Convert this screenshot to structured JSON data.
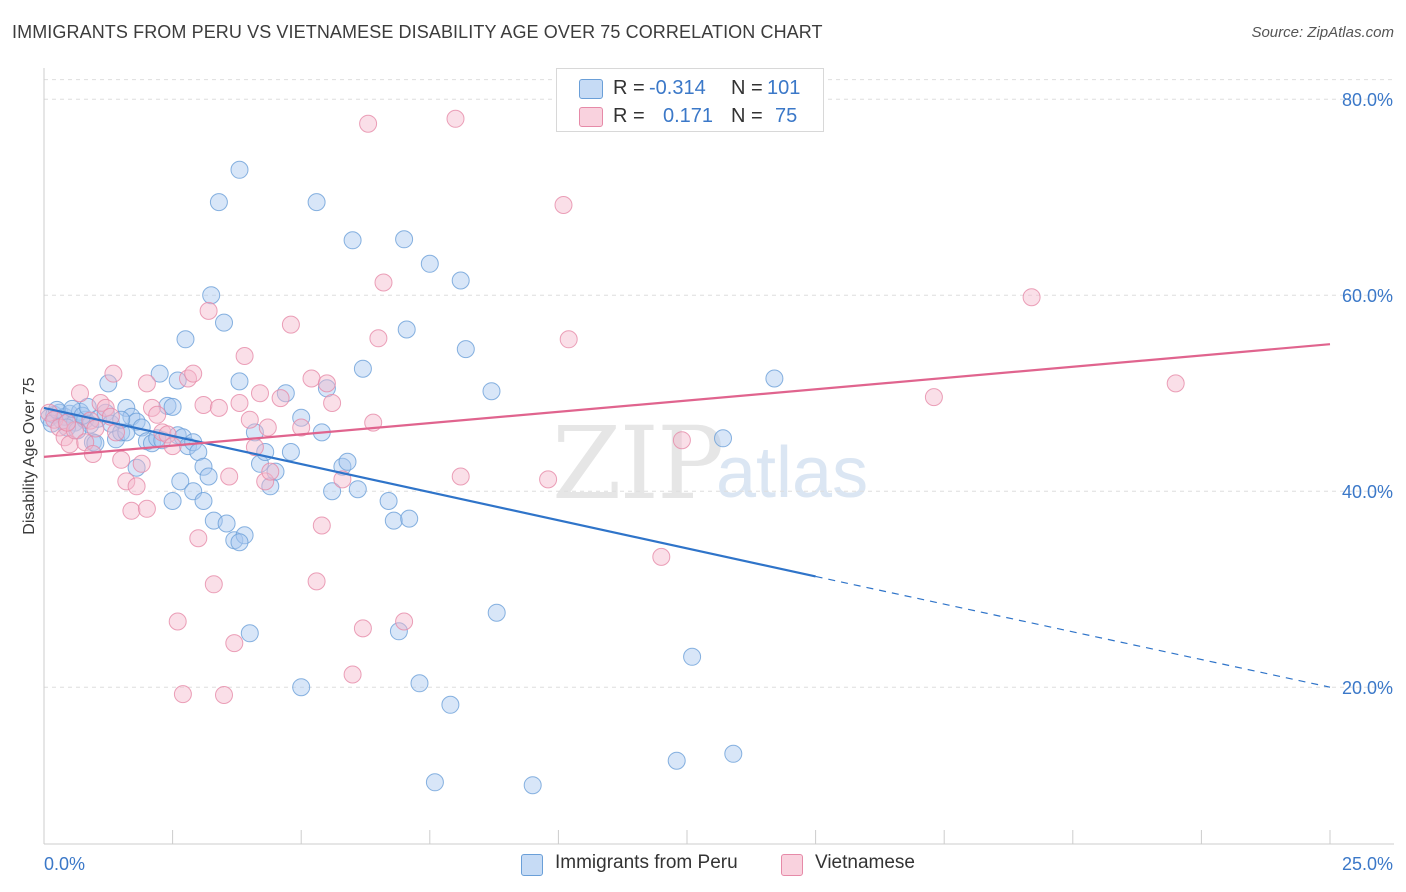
{
  "title": "IMMIGRANTS FROM PERU VS VIETNAMESE DISABILITY AGE OVER 75 CORRELATION CHART",
  "source": "Source: ZipAtlas.com",
  "watermark": {
    "zip": "ZIP",
    "atlas": "atlas"
  },
  "legend_stats": [
    {
      "r_label": "R =",
      "r_value": "-0.314",
      "n_label": "N =",
      "n_value": "101",
      "color": "#a9c8ef"
    },
    {
      "r_label": "R =",
      "r_value": "0.171",
      "n_label": "N =",
      "n_value": "75",
      "color": "#f5b8cc"
    }
  ],
  "chart_data": {
    "type": "scatter",
    "title": "IMMIGRANTS FROM PERU VS VIETNAMESE DISABILITY AGE OVER 75 CORRELATION CHART",
    "xlabel": "",
    "ylabel": "Disability Age Over 75",
    "xlim": [
      0,
      25
    ],
    "ylim": [
      4,
      84
    ],
    "x_ticks": [
      "0.0%",
      "25.0%"
    ],
    "y_ticks": [
      {
        "value": 80,
        "label": "80.0%"
      },
      {
        "value": 60,
        "label": "60.0%"
      },
      {
        "value": 40,
        "label": "40.0%"
      },
      {
        "value": 20,
        "label": "20.0%"
      }
    ],
    "grid": true,
    "legend_position": "bottom-center",
    "series": [
      {
        "name": "Immigrants from Peru",
        "color": "#a9c8ef",
        "stroke": "#6a9fd8",
        "trend_color": "#2f74c9",
        "trend": {
          "x0": 0,
          "y0": 48.5,
          "x1": 15,
          "y1": 31.3,
          "dash_to_x": 25,
          "dash_to_y": 20.0
        },
        "points": [
          [
            0.1,
            47.5
          ],
          [
            0.2,
            47.8
          ],
          [
            0.3,
            48.0
          ],
          [
            0.35,
            47.2
          ],
          [
            0.4,
            47.6
          ],
          [
            0.5,
            47.9
          ],
          [
            0.6,
            47.0
          ],
          [
            0.7,
            48.1
          ],
          [
            0.8,
            47.3
          ],
          [
            0.9,
            46.8
          ],
          [
            0.15,
            46.9
          ],
          [
            0.25,
            48.3
          ],
          [
            0.45,
            46.5
          ],
          [
            0.55,
            48.4
          ],
          [
            0.65,
            46.2
          ],
          [
            0.75,
            47.7
          ],
          [
            0.85,
            48.6
          ],
          [
            0.95,
            45.0
          ],
          [
            1.05,
            47.4
          ],
          [
            1.2,
            48.0
          ],
          [
            1.3,
            46.9
          ],
          [
            1.4,
            45.3
          ],
          [
            1.5,
            46.0
          ],
          [
            1.6,
            48.5
          ],
          [
            1.7,
            47.6
          ],
          [
            1.8,
            47.1
          ],
          [
            1.9,
            46.5
          ],
          [
            2.0,
            45.1
          ],
          [
            2.1,
            44.9
          ],
          [
            2.2,
            45.4
          ],
          [
            2.3,
            45.2
          ],
          [
            2.4,
            48.7
          ],
          [
            2.5,
            48.6
          ],
          [
            2.6,
            45.7
          ],
          [
            2.7,
            45.5
          ],
          [
            2.8,
            44.6
          ],
          [
            2.9,
            45.0
          ],
          [
            3.0,
            44.0
          ],
          [
            3.1,
            42.5
          ],
          [
            3.2,
            41.5
          ],
          [
            1.25,
            51.0
          ],
          [
            1.6,
            46.0
          ],
          [
            1.8,
            42.4
          ],
          [
            2.25,
            52.0
          ],
          [
            2.5,
            39.0
          ],
          [
            2.65,
            41.0
          ],
          [
            2.75,
            55.5
          ],
          [
            2.9,
            40.0
          ],
          [
            3.1,
            39.0
          ],
          [
            3.3,
            37.0
          ],
          [
            3.4,
            69.5
          ],
          [
            3.5,
            57.2
          ],
          [
            3.55,
            36.7
          ],
          [
            3.7,
            35.0
          ],
          [
            3.8,
            51.2
          ],
          [
            3.9,
            35.5
          ],
          [
            4.0,
            25.5
          ],
          [
            4.1,
            46.0
          ],
          [
            4.2,
            42.8
          ],
          [
            4.3,
            44.0
          ],
          [
            4.4,
            40.5
          ],
          [
            4.5,
            42.0
          ],
          [
            4.7,
            50.0
          ],
          [
            4.8,
            44.0
          ],
          [
            5.0,
            47.5
          ],
          [
            5.0,
            20.0
          ],
          [
            5.3,
            69.5
          ],
          [
            5.4,
            46.0
          ],
          [
            5.5,
            50.5
          ],
          [
            5.6,
            40.0
          ],
          [
            5.8,
            42.5
          ],
          [
            5.9,
            43.0
          ],
          [
            6.0,
            65.6
          ],
          [
            6.1,
            40.2
          ],
          [
            6.2,
            52.5
          ],
          [
            6.7,
            39.0
          ],
          [
            6.8,
            37.0
          ],
          [
            6.9,
            25.7
          ],
          [
            7.0,
            65.7
          ],
          [
            7.05,
            56.5
          ],
          [
            7.1,
            37.2
          ],
          [
            7.3,
            20.4
          ],
          [
            7.5,
            63.2
          ],
          [
            7.6,
            10.3
          ],
          [
            7.9,
            18.2
          ],
          [
            8.1,
            61.5
          ],
          [
            8.2,
            54.5
          ],
          [
            8.7,
            50.2
          ],
          [
            8.8,
            27.6
          ],
          [
            9.5,
            10.0
          ],
          [
            3.8,
            72.8
          ],
          [
            3.25,
            60.0
          ],
          [
            2.6,
            51.3
          ],
          [
            1.0,
            44.9
          ],
          [
            1.5,
            47.3
          ],
          [
            12.3,
            12.5
          ],
          [
            12.6,
            23.1
          ],
          [
            13.2,
            45.4
          ],
          [
            14.2,
            51.5
          ],
          [
            13.4,
            13.2
          ],
          [
            3.8,
            34.8
          ]
        ]
      },
      {
        "name": "Vietnamese",
        "color": "#f5b8cc",
        "stroke": "#e68aa8",
        "trend_color": "#e0648e",
        "trend": {
          "x0": 0,
          "y0": 43.5,
          "x1": 25,
          "y1": 55.0
        },
        "points": [
          [
            0.1,
            48.0
          ],
          [
            0.2,
            47.3
          ],
          [
            0.3,
            46.5
          ],
          [
            0.4,
            45.5
          ],
          [
            0.5,
            44.8
          ],
          [
            0.6,
            46.2
          ],
          [
            0.7,
            50.0
          ],
          [
            0.8,
            45.0
          ],
          [
            0.9,
            47.2
          ],
          [
            1.0,
            46.4
          ],
          [
            1.1,
            49.0
          ],
          [
            1.2,
            48.5
          ],
          [
            1.3,
            47.6
          ],
          [
            1.4,
            46.0
          ],
          [
            1.5,
            43.2
          ],
          [
            1.6,
            41.0
          ],
          [
            1.7,
            38.0
          ],
          [
            1.8,
            40.5
          ],
          [
            1.9,
            42.8
          ],
          [
            2.0,
            38.2
          ],
          [
            2.1,
            48.5
          ],
          [
            2.2,
            47.8
          ],
          [
            2.3,
            46.0
          ],
          [
            2.4,
            45.8
          ],
          [
            2.5,
            44.6
          ],
          [
            2.6,
            26.7
          ],
          [
            2.7,
            19.3
          ],
          [
            2.8,
            51.5
          ],
          [
            2.9,
            52.0
          ],
          [
            3.0,
            35.2
          ],
          [
            3.1,
            48.8
          ],
          [
            3.2,
            58.4
          ],
          [
            3.3,
            30.5
          ],
          [
            3.4,
            48.5
          ],
          [
            3.5,
            19.2
          ],
          [
            3.6,
            41.5
          ],
          [
            3.7,
            24.5
          ],
          [
            3.8,
            49.0
          ],
          [
            3.9,
            53.8
          ],
          [
            4.0,
            47.3
          ],
          [
            4.1,
            44.5
          ],
          [
            4.2,
            50.0
          ],
          [
            4.3,
            41.0
          ],
          [
            4.4,
            42.0
          ],
          [
            4.6,
            49.5
          ],
          [
            4.8,
            57.0
          ],
          [
            5.0,
            46.5
          ],
          [
            5.2,
            51.5
          ],
          [
            5.3,
            30.8
          ],
          [
            5.4,
            36.5
          ],
          [
            5.6,
            49.0
          ],
          [
            5.8,
            41.2
          ],
          [
            6.0,
            21.3
          ],
          [
            6.2,
            26.0
          ],
          [
            6.3,
            77.5
          ],
          [
            6.4,
            47.0
          ],
          [
            6.5,
            55.6
          ],
          [
            6.6,
            61.3
          ],
          [
            7.0,
            26.7
          ],
          [
            8.0,
            78.0
          ],
          [
            8.1,
            41.5
          ],
          [
            9.8,
            41.2
          ],
          [
            10.1,
            69.2
          ],
          [
            10.2,
            55.5
          ],
          [
            12.0,
            33.3
          ],
          [
            12.4,
            45.2
          ],
          [
            17.3,
            49.6
          ],
          [
            19.2,
            59.8
          ],
          [
            22.0,
            51.0
          ],
          [
            2.0,
            51.0
          ],
          [
            1.35,
            52.0
          ],
          [
            0.45,
            47.0
          ],
          [
            0.95,
            43.8
          ],
          [
            4.35,
            46.5
          ],
          [
            5.5,
            51.0
          ]
        ]
      }
    ]
  }
}
